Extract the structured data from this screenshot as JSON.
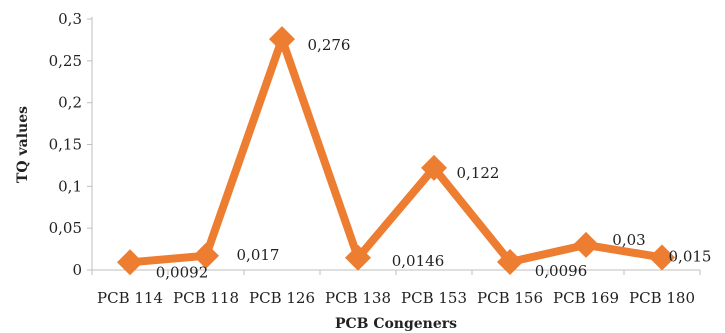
{
  "chart_data": {
    "type": "line",
    "categories": [
      "PCB 114",
      "PCB 118",
      "PCB 126",
      "PCB 138",
      "PCB 153",
      "PCB 156",
      "PCB 169",
      "PCB 180"
    ],
    "values": [
      0.0092,
      0.017,
      0.276,
      0.0146,
      0.122,
      0.0096,
      0.03,
      0.015
    ],
    "data_labels": [
      "0,0092",
      "0,017",
      "0,276",
      "0,0146",
      "0,122",
      "0,0096",
      "0,03",
      "0,015"
    ],
    "xlabel": "PCB Congeners",
    "ylabel": "TQ values",
    "ylim": [
      0,
      0.3
    ],
    "yticks": [
      0,
      0.05,
      0.1,
      0.15,
      0.2,
      0.25,
      0.3
    ],
    "ytick_labels": [
      "0",
      "0,05",
      "0,1",
      "0,15",
      "0,2",
      "0,25",
      "0,3"
    ],
    "grid": false,
    "legend": "none",
    "marker": "diamond",
    "colors": {
      "line": "#ED7D31",
      "axis": "#bfbfbf",
      "text": "#222222"
    }
  }
}
